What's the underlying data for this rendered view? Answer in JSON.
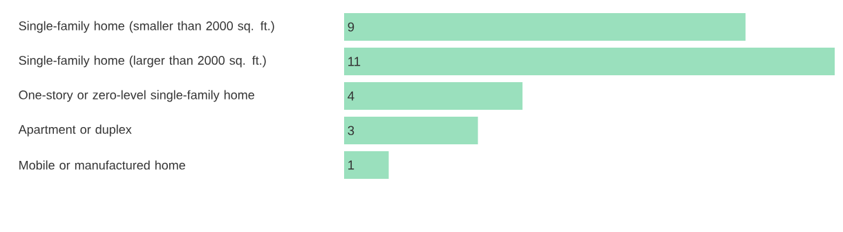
{
  "chart_data": {
    "type": "bar",
    "orientation": "horizontal",
    "categories": [
      "Single-family home (smaller than 2000 sq. ft.)",
      "Single-family home (larger than 2000 sq. ft.)",
      "One-story or zero-level single-family home",
      "Apartment or duplex",
      "Mobile or manufactured home"
    ],
    "values": [
      9,
      11,
      4,
      3,
      1
    ],
    "color": "#9ae0bd",
    "data_labels": true
  }
}
